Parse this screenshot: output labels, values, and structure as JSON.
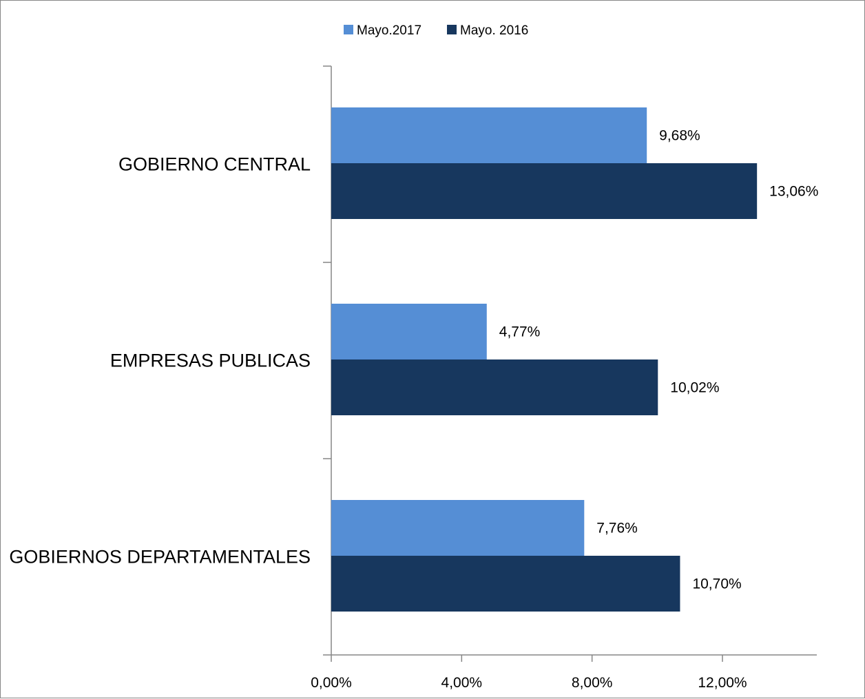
{
  "chart_data": {
    "type": "bar",
    "orientation": "horizontal",
    "categories": [
      "GOBIERNO CENTRAL",
      "EMPRESAS PUBLICAS",
      "GOBIERNOS DEPARTAMENTALES"
    ],
    "series": [
      {
        "name": "Mayo.2017",
        "color": "#558ED5",
        "values": [
          9.68,
          4.77,
          7.76
        ],
        "labels": [
          "9,68%",
          "4,77%",
          "7,76%"
        ]
      },
      {
        "name": "Mayo. 2016",
        "color": "#17375E",
        "values": [
          13.06,
          10.02,
          10.7
        ],
        "labels": [
          "13,06%",
          "10,02%",
          "10,70%"
        ]
      }
    ],
    "xlim": [
      0,
      15
    ],
    "xticks": [
      0,
      4,
      8,
      12
    ],
    "xtick_labels": [
      "0,00%",
      "4,00%",
      "8,00%",
      "12,00%"
    ],
    "title": "",
    "xlabel": "",
    "ylabel": "",
    "legend_position": "top-center",
    "grid": false
  }
}
